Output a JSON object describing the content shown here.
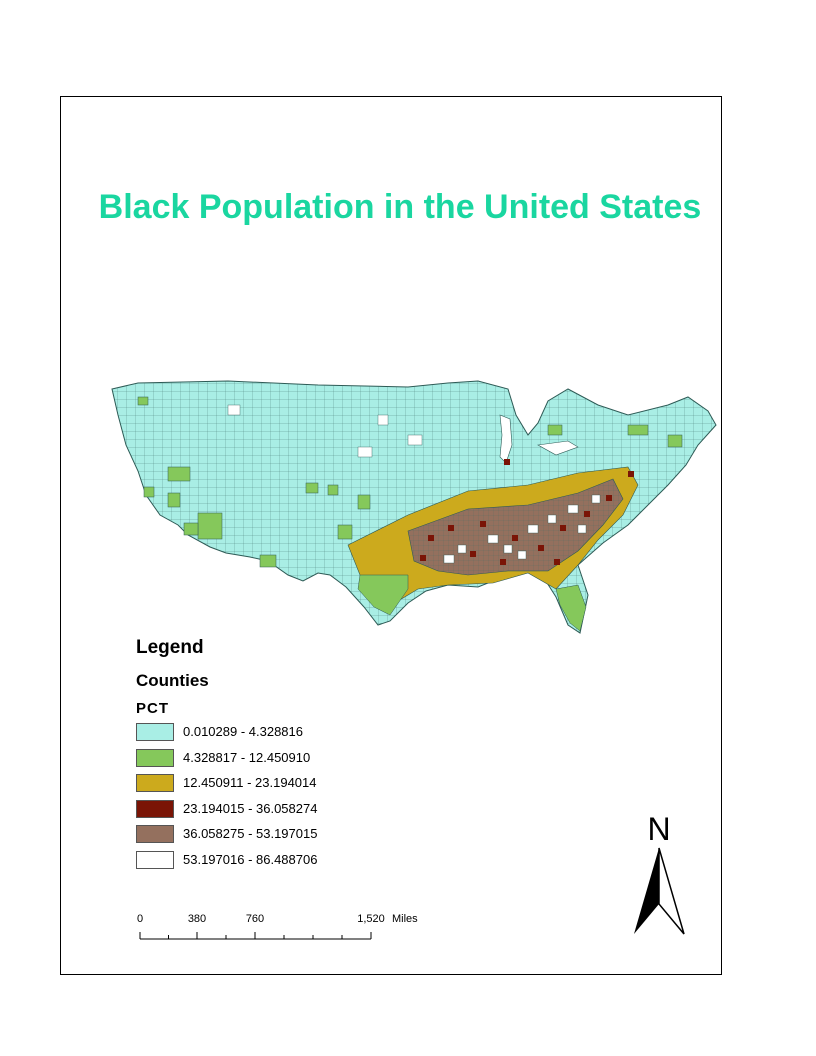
{
  "title": {
    "text": "Black Population in the United States",
    "color": "#1ad6a0"
  },
  "map": {
    "description_icon": "us-counties-choropleth-icon"
  },
  "legend": {
    "title": "Legend",
    "layer": "Counties",
    "field": "PCT",
    "classes": [
      {
        "label": "0.010289 - 4.328816",
        "color": "#a9eee5"
      },
      {
        "label": "4.328817 - 12.450910",
        "color": "#85c85b"
      },
      {
        "label": "12.450911 - 23.194014",
        "color": "#ccaa1d"
      },
      {
        "label": "23.194015 - 36.058274",
        "color": "#7a1406"
      },
      {
        "label": "36.058275 - 53.197015",
        "color": "#94705e"
      },
      {
        "label": "53.197016 - 86.488706",
        "color": "#ffffff"
      }
    ]
  },
  "scalebar": {
    "ticks": [
      "0",
      "380",
      "760",
      "1,520"
    ],
    "unit": "Miles"
  },
  "north_arrow": {
    "label": "N",
    "icon": "north-arrow-icon"
  }
}
